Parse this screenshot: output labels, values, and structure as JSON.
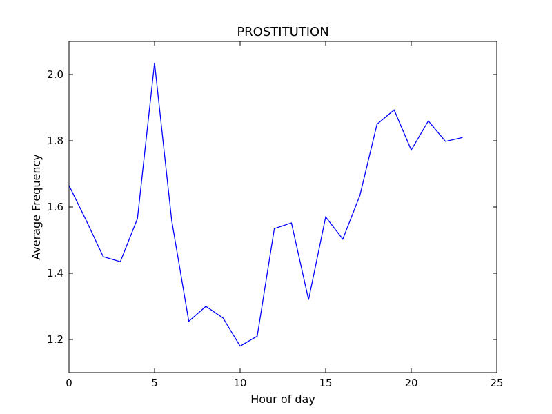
{
  "chart_data": {
    "type": "line",
    "title": "PROSTITUTION",
    "xlabel": "Hour of day",
    "ylabel": "Average Frequency",
    "xlim": [
      0,
      25
    ],
    "ylim": [
      1.1,
      2.1
    ],
    "xticks": [
      0,
      5,
      10,
      15,
      20,
      25
    ],
    "yticks": [
      1.2,
      1.4,
      1.6,
      1.8,
      2.0
    ],
    "xtick_labels": [
      "0",
      "5",
      "10",
      "15",
      "20",
      "25"
    ],
    "ytick_labels": [
      "1.2",
      "1.4",
      "1.6",
      "1.8",
      "2.0"
    ],
    "grid": false,
    "line_color": "#0000ff",
    "series": [
      {
        "x": [
          0,
          1,
          2,
          3,
          4,
          5,
          6,
          7,
          8,
          9,
          10,
          11,
          12,
          13,
          14,
          15,
          16,
          17,
          18,
          19,
          20,
          21,
          22,
          23
        ],
        "values": [
          1.665,
          1.56,
          1.45,
          1.435,
          1.565,
          2.035,
          1.56,
          1.255,
          1.3,
          1.265,
          1.18,
          1.21,
          1.535,
          1.552,
          1.32,
          1.57,
          1.503,
          1.635,
          1.85,
          1.893,
          1.772,
          1.86,
          1.798,
          1.81
        ]
      }
    ]
  }
}
